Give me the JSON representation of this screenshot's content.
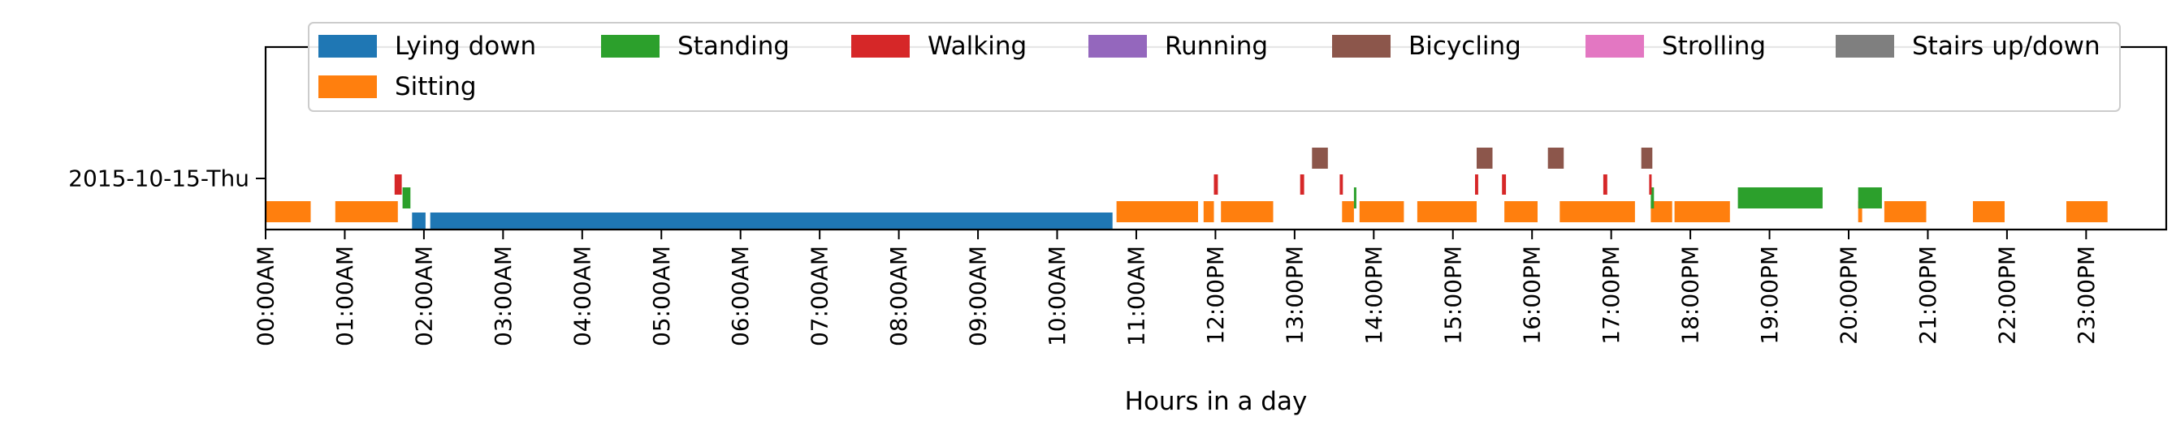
{
  "chart_data": {
    "type": "timeline",
    "xlabel": "Hours in a day",
    "xlim_hours": [
      0,
      24
    ],
    "grid": false,
    "legend_placement": "top",
    "rows": [
      "2015-10-15-Thu"
    ],
    "x_ticks": [
      "00:00AM",
      "01:00AM",
      "02:00AM",
      "03:00AM",
      "04:00AM",
      "05:00AM",
      "06:00AM",
      "07:00AM",
      "08:00AM",
      "09:00AM",
      "10:00AM",
      "11:00AM",
      "12:00PM",
      "13:00PM",
      "14:00PM",
      "15:00PM",
      "16:00PM",
      "17:00PM",
      "18:00PM",
      "19:00PM",
      "20:00PM",
      "21:00PM",
      "22:00PM",
      "23:00PM"
    ],
    "legend": [
      {
        "label": "Lying down",
        "color": "#1f77b4"
      },
      {
        "label": "Standing",
        "color": "#2ca02c"
      },
      {
        "label": "Walking",
        "color": "#d62728"
      },
      {
        "label": "Running",
        "color": "#9467bd"
      },
      {
        "label": "Bicycling",
        "color": "#8c564b"
      },
      {
        "label": "Strolling",
        "color": "#e377c2"
      },
      {
        "label": "Stairs up/down",
        "color": "#7f7f7f"
      },
      {
        "label": "Sitting",
        "color": "#ff7f0e"
      }
    ],
    "series": [
      {
        "name": "Lying down",
        "color": "#1f77b4",
        "intervals": [
          [
            1.85,
            2.02
          ],
          [
            2.08,
            10.7
          ]
        ]
      },
      {
        "name": "Sitting",
        "color": "#ff7f0e",
        "intervals": [
          [
            0.0,
            0.57
          ],
          [
            0.88,
            1.67
          ],
          [
            10.75,
            11.78
          ],
          [
            11.85,
            11.98
          ],
          [
            12.07,
            12.73
          ],
          [
            13.6,
            13.75
          ],
          [
            13.82,
            14.38
          ],
          [
            14.55,
            15.3
          ],
          [
            15.65,
            16.07
          ],
          [
            16.35,
            17.3
          ],
          [
            17.5,
            17.77
          ],
          [
            17.8,
            18.5
          ],
          [
            20.12,
            20.17
          ],
          [
            20.45,
            20.98
          ],
          [
            21.57,
            21.97
          ],
          [
            22.75,
            23.27
          ]
        ]
      },
      {
        "name": "Standing",
        "color": "#2ca02c",
        "intervals": [
          [
            1.73,
            1.83
          ],
          [
            13.75,
            13.78
          ],
          [
            17.5,
            17.54
          ],
          [
            18.6,
            19.67
          ],
          [
            20.12,
            20.42
          ]
        ]
      },
      {
        "name": "Walking",
        "color": "#d62728",
        "intervals": [
          [
            1.63,
            1.72
          ],
          [
            11.98,
            12.03
          ],
          [
            13.07,
            13.12
          ],
          [
            13.57,
            13.61
          ],
          [
            15.28,
            15.32
          ],
          [
            15.62,
            15.67
          ],
          [
            16.9,
            16.95
          ],
          [
            17.48,
            17.51
          ]
        ]
      },
      {
        "name": "Bicycling",
        "color": "#8c564b",
        "intervals": [
          [
            13.22,
            13.42
          ],
          [
            15.3,
            15.5
          ],
          [
            16.2,
            16.4
          ],
          [
            17.38,
            17.52
          ]
        ]
      },
      {
        "name": "Running",
        "color": "#9467bd",
        "intervals": []
      },
      {
        "name": "Strolling",
        "color": "#e377c2",
        "intervals": []
      },
      {
        "name": "Stairs up/down",
        "color": "#7f7f7f",
        "intervals": []
      }
    ]
  }
}
